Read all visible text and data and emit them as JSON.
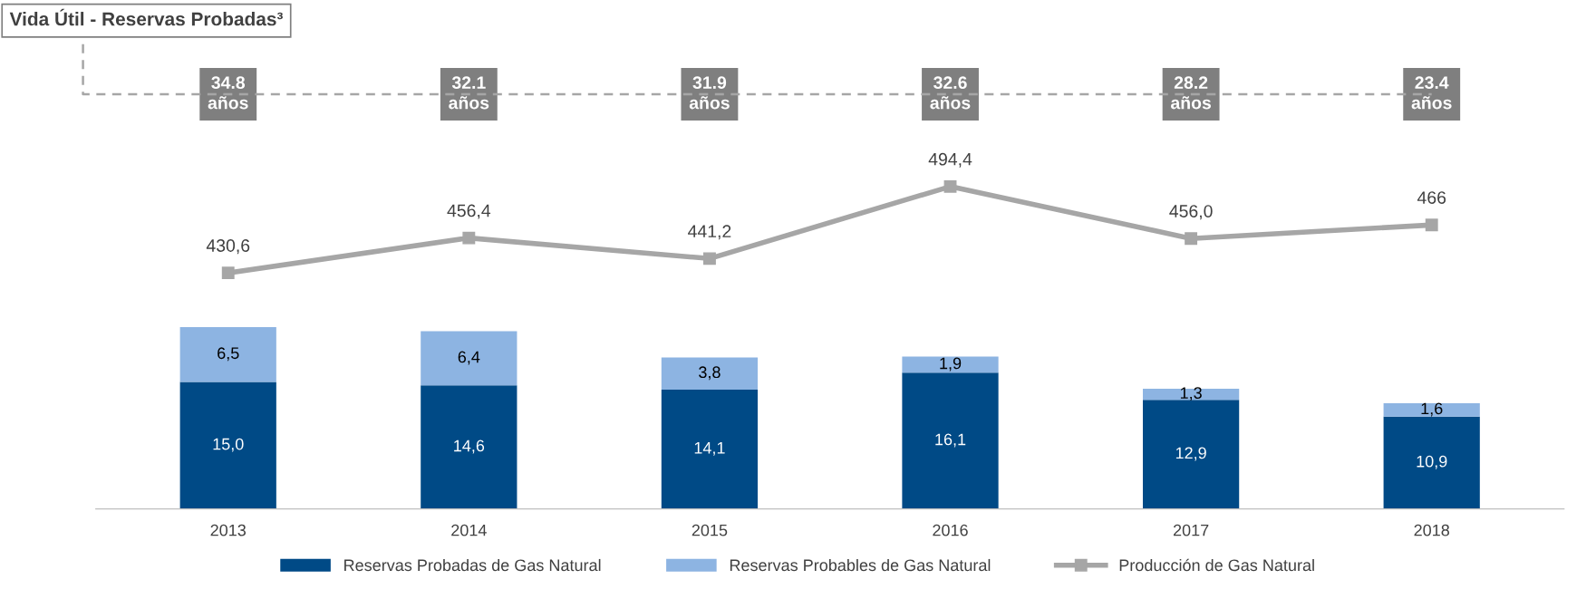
{
  "chart_data": [
    {
      "type": "line",
      "title": "Vida Útil - Reservas Probadas³",
      "categories": [
        "2013",
        "2014",
        "2015",
        "2016",
        "2017",
        "2018"
      ],
      "series": [
        {
          "name": "Producción de Gas Natural",
          "marker": "square",
          "color": "#a6a6a6",
          "values": [
            430.6,
            456.4,
            441.2,
            494.4,
            456.0,
            466
          ],
          "value_labels": [
            "430,6",
            "456,4",
            "441,2",
            "494,4",
            "456,0",
            "466"
          ]
        }
      ],
      "tick_labels": false,
      "legend": "bottom",
      "annotations": [
        "34.8\naños",
        "32.1\naños",
        "31.9\naños",
        "32.6\naños",
        "28.2\naños",
        "23.4\naños"
      ]
    },
    {
      "type": "bar",
      "stacked": true,
      "categories": [
        "2013",
        "2014",
        "2015",
        "2016",
        "2017",
        "2018"
      ],
      "series": [
        {
          "name": "Reservas Probadas de Gas Natural",
          "color": "#004a86",
          "values": [
            15.0,
            14.6,
            14.1,
            16.1,
            12.9,
            10.9
          ],
          "value_labels": [
            "15,0",
            "14,6",
            "14,1",
            "16,1",
            "12,9",
            "10,9"
          ]
        },
        {
          "name": "Reservas Probables de Gas Natural",
          "color": "#8db4e2",
          "values": [
            6.5,
            6.4,
            3.8,
            1.9,
            1.3,
            1.6
          ],
          "value_labels": [
            "6,5",
            "6,4",
            "3,8",
            "1,9",
            "1,3",
            "1,6"
          ]
        }
      ],
      "tick_labels": "x",
      "grid": false,
      "legend": "bottom"
    }
  ]
}
